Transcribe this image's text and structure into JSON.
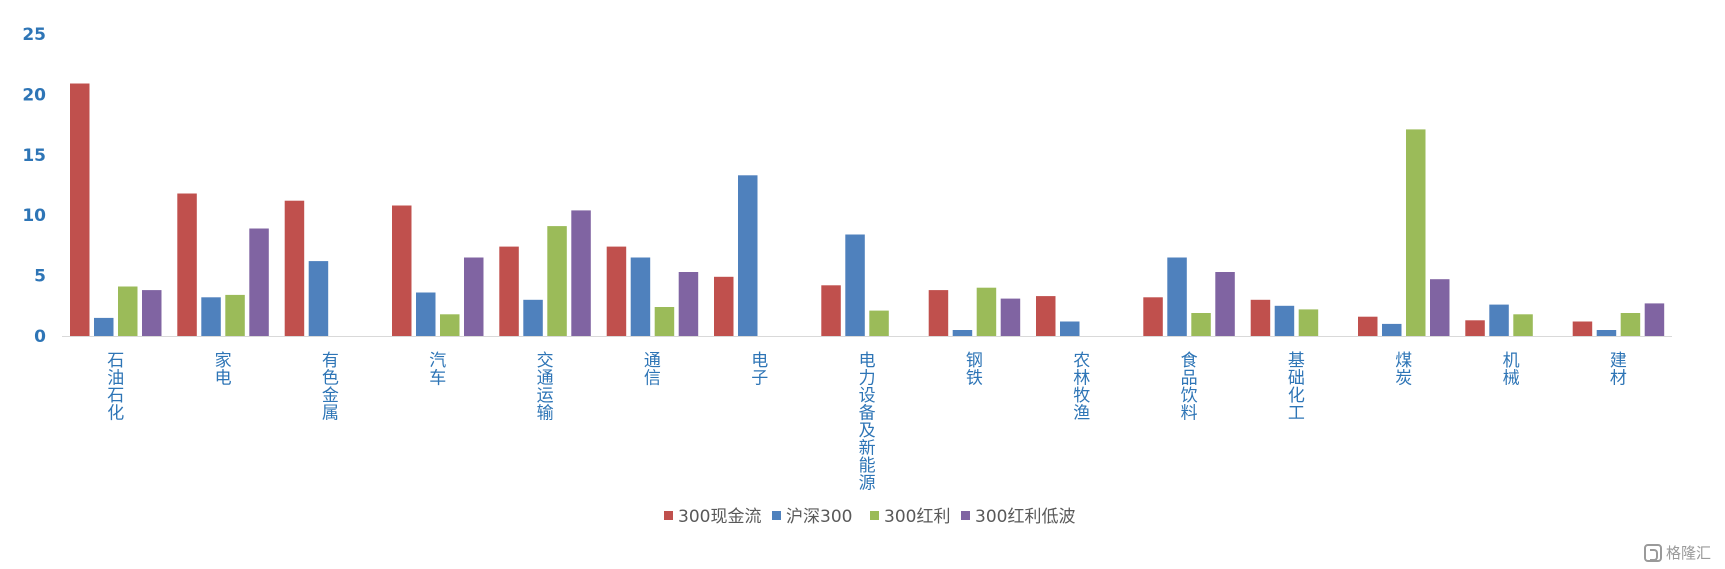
{
  "chart_data": {
    "type": "bar",
    "title": "",
    "xlabel": "",
    "ylabel": "",
    "ylim": [
      0,
      25
    ],
    "yticks": [
      0,
      5,
      10,
      15,
      20,
      25
    ],
    "grid": false,
    "legend_position": "bottom",
    "categories": [
      "石油石化",
      "家电",
      "有色金属",
      "汽车",
      "交通运输",
      "通信",
      "电子",
      "电力设备及新能源",
      "钢铁",
      "农林牧渔",
      "食品饮料",
      "基础化工",
      "煤炭",
      "机械",
      "建材"
    ],
    "series": [
      {
        "name": "300现金流",
        "color": "#c0504d",
        "values": [
          20.9,
          11.8,
          11.2,
          10.8,
          7.4,
          7.4,
          4.9,
          4.2,
          3.8,
          3.3,
          3.2,
          3.0,
          1.6,
          1.3,
          1.2
        ]
      },
      {
        "name": "沪深300",
        "color": "#4f81bd",
        "values": [
          1.5,
          3.2,
          6.2,
          3.6,
          3.0,
          6.5,
          13.3,
          8.4,
          0.5,
          1.2,
          6.5,
          2.5,
          1.0,
          2.6,
          0.5
        ]
      },
      {
        "name": "300红利",
        "color": "#9bbb59",
        "values": [
          4.1,
          3.4,
          0,
          1.8,
          9.1,
          2.4,
          0,
          2.1,
          4.0,
          0,
          1.9,
          2.2,
          17.1,
          1.8,
          1.9
        ]
      },
      {
        "name": "300红利低波",
        "color": "#8064a2",
        "values": [
          3.8,
          8.9,
          0,
          6.5,
          10.4,
          5.3,
          0,
          0,
          3.1,
          0,
          5.3,
          0,
          4.7,
          0,
          2.7
        ]
      }
    ]
  },
  "watermark": {
    "text": "格隆汇"
  }
}
